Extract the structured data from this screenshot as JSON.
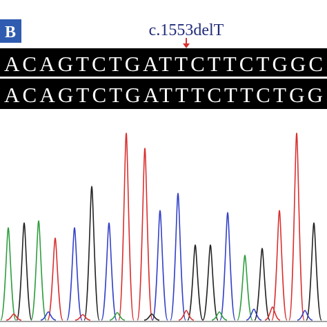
{
  "panel_label": "B",
  "mutation_label": "c.1553delT",
  "sequences": [
    "ACAGTCTGATTCTTCTGGC",
    "ACAGTCTGATTTCTTCTGG"
  ]
}
